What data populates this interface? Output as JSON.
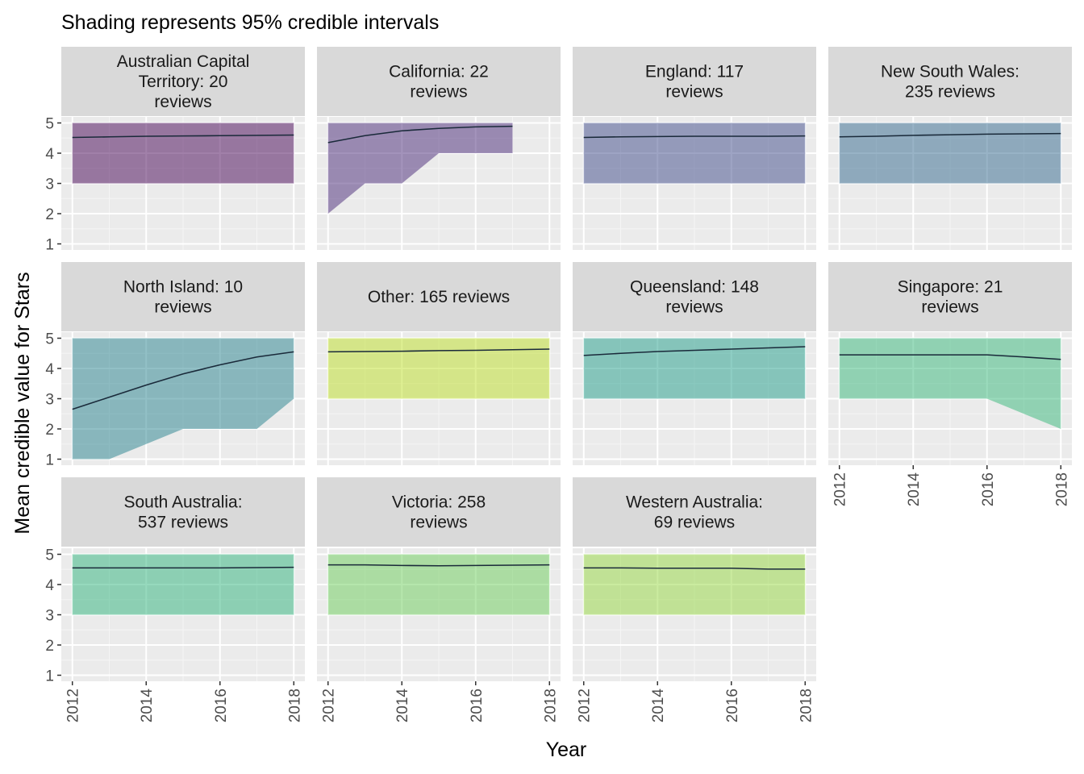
{
  "title": "Shading represents 95% credible intervals",
  "xlabel": "Year",
  "ylabel": "Mean credible value for Stars",
  "chart_data": {
    "type": "line",
    "title": "Shading represents 95% credible intervals",
    "xlabel": "Year",
    "ylabel": "Mean credible value for Stars",
    "xlim": [
      2011.7,
      2018.3
    ],
    "ylim": [
      0.8,
      5.2
    ],
    "x_ticks": [
      2012,
      2014,
      2016,
      2018
    ],
    "y_ticks": [
      1,
      2,
      3,
      4,
      5
    ],
    "facet_layout": "4 columns, 3 rows",
    "grid": true,
    "panels": [
      {
        "label": "Australian Capital\nTerritory: 20\nreviews",
        "color": "#440154",
        "x": [
          2012,
          2013,
          2014,
          2015,
          2016,
          2017,
          2018
        ],
        "mean": [
          4.52,
          4.54,
          4.56,
          4.57,
          4.58,
          4.59,
          4.6
        ],
        "lower": [
          3,
          3,
          3,
          3,
          3,
          3,
          3
        ],
        "upper": [
          5,
          5,
          5,
          5,
          5,
          5,
          5
        ]
      },
      {
        "label": "California: 22\nreviews",
        "color": "#482878",
        "x": [
          2012,
          2013,
          2014,
          2015,
          2016,
          2017
        ],
        "mean": [
          4.35,
          4.58,
          4.74,
          4.82,
          4.87,
          4.89
        ],
        "lower": [
          2,
          3,
          3,
          4,
          4,
          4
        ],
        "upper": [
          5,
          5,
          5,
          5,
          5,
          5
        ]
      },
      {
        "label": "England: 117\nreviews",
        "color": "#3E4A89",
        "x": [
          2012,
          2013,
          2014,
          2015,
          2016,
          2017,
          2018
        ],
        "mean": [
          4.52,
          4.54,
          4.55,
          4.56,
          4.56,
          4.56,
          4.57
        ],
        "lower": [
          3,
          3,
          3,
          3,
          3,
          3,
          3
        ],
        "upper": [
          5,
          5,
          5,
          5,
          5,
          5,
          5
        ]
      },
      {
        "label": "New South Wales:\n235 reviews",
        "color": "#31688E",
        "x": [
          2012,
          2013,
          2014,
          2015,
          2016,
          2017,
          2018
        ],
        "mean": [
          4.54,
          4.56,
          4.59,
          4.61,
          4.63,
          4.64,
          4.65
        ],
        "lower": [
          3,
          3,
          3,
          3,
          3,
          3,
          3
        ],
        "upper": [
          5,
          5,
          5,
          5,
          5,
          5,
          5
        ]
      },
      {
        "label": "North Island: 10\nreviews",
        "color": "#26828E",
        "x": [
          2012,
          2013,
          2014,
          2015,
          2016,
          2017,
          2018
        ],
        "mean": [
          2.65,
          3.05,
          3.45,
          3.82,
          4.12,
          4.38,
          4.55
        ],
        "lower": [
          1,
          1,
          1.5,
          2,
          2,
          2,
          3
        ],
        "upper": [
          5,
          5,
          5,
          5,
          5,
          5,
          5
        ]
      },
      {
        "label": "Other: 165 reviews",
        "color": "#BDDF26",
        "x": [
          2012,
          2013,
          2014,
          2015,
          2016,
          2017,
          2018
        ],
        "mean": [
          4.55,
          4.56,
          4.57,
          4.59,
          4.6,
          4.62,
          4.64
        ],
        "lower": [
          3,
          3,
          3,
          3,
          3,
          3,
          3
        ],
        "upper": [
          5,
          5,
          5,
          5,
          5,
          5,
          5
        ]
      },
      {
        "label": "Queensland: 148\nreviews",
        "color": "#1F9E89",
        "x": [
          2012,
          2013,
          2014,
          2015,
          2016,
          2017,
          2018
        ],
        "mean": [
          4.43,
          4.5,
          4.56,
          4.6,
          4.64,
          4.68,
          4.72
        ],
        "lower": [
          3,
          3,
          3,
          3,
          3,
          3,
          3
        ],
        "upper": [
          5,
          5,
          5,
          5,
          5,
          5,
          5
        ]
      },
      {
        "label": "Singapore: 21\nreviews",
        "color": "#35B779",
        "x": [
          2012,
          2013,
          2014,
          2015,
          2016,
          2017,
          2018
        ],
        "mean": [
          4.45,
          4.45,
          4.45,
          4.45,
          4.45,
          4.38,
          4.3
        ],
        "lower": [
          3,
          3,
          3,
          3,
          3,
          2.5,
          2
        ],
        "upper": [
          5,
          5,
          5,
          5,
          5,
          5,
          5
        ]
      },
      {
        "label": "South Australia:\n537 reviews",
        "color": "#2EB37C",
        "x": [
          2012,
          2013,
          2014,
          2015,
          2016,
          2017,
          2018
        ],
        "mean": [
          4.55,
          4.55,
          4.55,
          4.55,
          4.55,
          4.56,
          4.57
        ],
        "lower": [
          3,
          3,
          3,
          3,
          3,
          3,
          3
        ],
        "upper": [
          5,
          5,
          5,
          5,
          5,
          5,
          5
        ]
      },
      {
        "label": "Victoria: 258\nreviews",
        "color": "#6CCD5A",
        "x": [
          2012,
          2013,
          2014,
          2015,
          2016,
          2017,
          2018
        ],
        "mean": [
          4.65,
          4.65,
          4.63,
          4.62,
          4.63,
          4.64,
          4.65
        ],
        "lower": [
          3,
          3,
          3,
          3,
          3,
          3,
          3
        ],
        "upper": [
          5,
          5,
          5,
          5,
          5,
          5,
          5
        ]
      },
      {
        "label": "Western Australia:\n69 reviews",
        "color": "#95D840",
        "x": [
          2012,
          2013,
          2014,
          2015,
          2016,
          2017,
          2018
        ],
        "mean": [
          4.55,
          4.55,
          4.54,
          4.54,
          4.54,
          4.51,
          4.51
        ],
        "lower": [
          3,
          3,
          3,
          3,
          3,
          3,
          3
        ],
        "upper": [
          5,
          5,
          5,
          5,
          5,
          5,
          5
        ]
      }
    ]
  }
}
